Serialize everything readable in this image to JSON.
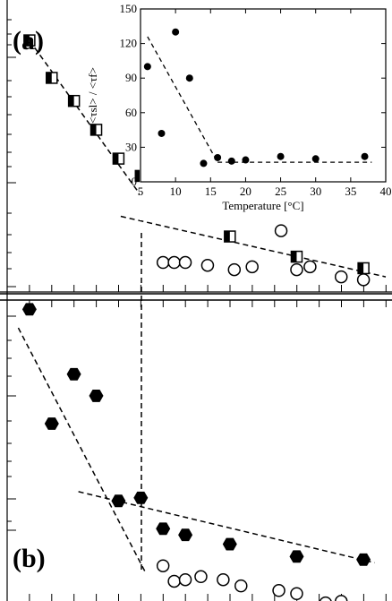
{
  "chart_data": [
    {
      "panel": "(a)",
      "type": "scatter",
      "series": [
        {
          "marker": "half-filled-square",
          "x": [
            1,
            2,
            3,
            4,
            5,
            6,
            7,
            8,
            10,
            13,
            16
          ],
          "y": [
            8.6,
            7.3,
            6.5,
            5.5,
            4.5,
            3.9,
            3.0,
            2.6,
            1.8,
            1.1,
            0.7
          ]
        },
        {
          "marker": "open-circle",
          "x": [
            7,
            7.5,
            8,
            9,
            10.2,
            11,
            12.3,
            13,
            13.6,
            15,
            16
          ],
          "y": [
            0.9,
            0.9,
            0.9,
            0.8,
            0.65,
            0.75,
            2.0,
            0.65,
            0.75,
            0.4,
            0.3
          ]
        }
      ],
      "fit_lines": [
        {
          "x": [
            1,
            6.3
          ],
          "y": [
            8.6,
            2.9
          ]
        },
        {
          "x": [
            5.1,
            17
          ],
          "y": [
            2.5,
            0.4
          ]
        }
      ]
    },
    {
      "panel": "(b)",
      "type": "scatter",
      "series": [
        {
          "marker": "filled-hexagon",
          "x": [
            1,
            2,
            3,
            4,
            5,
            6,
            7,
            8,
            10,
            13,
            16
          ],
          "y": [
            9.7,
            6.0,
            7.6,
            6.9,
            3.5,
            3.6,
            2.6,
            2.4,
            2.1,
            1.7,
            1.6
          ]
        },
        {
          "marker": "open-circle",
          "x": [
            7,
            7.5,
            8,
            8.7,
            9.7,
            10.5,
            12.2,
            13,
            14.3,
            15
          ],
          "y": [
            1.4,
            0.9,
            0.95,
            1.05,
            0.95,
            0.75,
            0.6,
            0.5,
            0.2,
            0.25
          ]
        }
      ],
      "fit_lines": [
        {
          "x": [
            0.5,
            6.2
          ],
          "y": [
            9.1,
            1.2
          ]
        },
        {
          "x": [
            3.2,
            16.5
          ],
          "y": [
            3.8,
            1.5
          ]
        }
      ]
    },
    {
      "panel": "inset",
      "type": "scatter",
      "title": "",
      "xlabel": "Temperature  [°C]",
      "ylabel": "<τsl> / <τf>",
      "xlim": [
        5,
        40
      ],
      "ylim": [
        0,
        150
      ],
      "xticks": [
        "5",
        "10",
        "15",
        "20",
        "25",
        "30",
        "35",
        "40"
      ],
      "yticks": [
        "0",
        "30",
        "60",
        "90",
        "120",
        "150"
      ],
      "series": [
        {
          "marker": "filled-circle",
          "x": [
            6,
            8,
            10,
            12,
            14,
            16,
            18,
            20,
            25,
            30,
            37
          ],
          "y": [
            100,
            42,
            130,
            90,
            16,
            21,
            18,
            19,
            22,
            20,
            22
          ]
        }
      ],
      "fit_lines": [
        {
          "x": [
            6,
            16
          ],
          "y": [
            126,
            17
          ]
        },
        {
          "x": [
            16,
            38
          ],
          "y": [
            17,
            17
          ]
        }
      ]
    }
  ],
  "panel_labels": {
    "a": "(a)",
    "b": "(b)"
  },
  "colors": {
    "ink": "#000000",
    "background": "#ffffff"
  }
}
